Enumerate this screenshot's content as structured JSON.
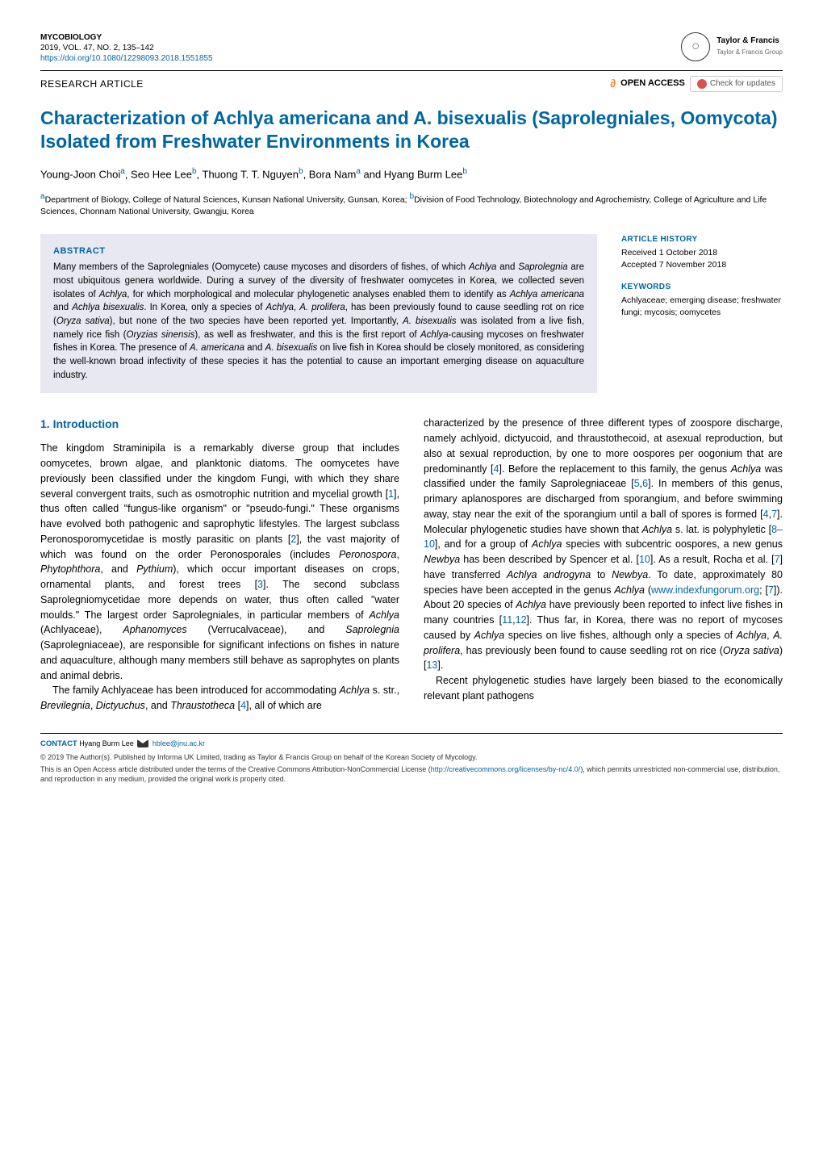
{
  "journal": {
    "name": "MYCOBIOLOGY",
    "citation": "2019, VOL. 47, NO. 2, 135–142",
    "doi": "https://doi.org/10.1080/12298093.2018.1551855"
  },
  "publisher": {
    "logo_text": "Taylor & Francis",
    "logo_sub": "Taylor & Francis Group",
    "society_logo": "KOREAN SOCIETY OF MYCOLOGY"
  },
  "article_type": "RESEARCH ARTICLE",
  "access": {
    "open_access": "OPEN ACCESS",
    "check_updates": "Check for updates"
  },
  "title": "Characterization of Achlya americana and A. bisexualis (Saprolegniales, Oomycota) Isolated from Freshwater Environments in Korea",
  "authors_html": "Young-Joon Choi<sup class='sup'>a</sup>, Seo Hee Lee<sup class='sup'>b</sup>, Thuong T. T. Nguyen<sup class='sup'>b</sup>, Bora Nam<sup class='sup'>a</sup> and Hyang Burm Lee<sup class='sup'>b</sup>",
  "affiliations_html": "<sup class='sup'>a</sup>Department of Biology, College of Natural Sciences, Kunsan National University, Gunsan, Korea;  <sup class='sup'>b</sup>Division of Food Technology, Biotechnology and Agrochemistry, College of Agriculture and Life Sciences, Chonnam National University, Gwangju, Korea",
  "abstract": {
    "heading": "ABSTRACT",
    "text_html": "Many members of the Saprolegniales (Oomycete) cause mycoses and disorders of fishes, of which <span class='italic'>Achlya</span> and <span class='italic'>Saprolegnia</span> are most ubiquitous genera worldwide. During a survey of the diversity of freshwater oomycetes in Korea, we collected seven isolates of <span class='italic'>Achlya</span>, for which morphological and molecular phylogenetic analyses enabled them to identify as <span class='italic'>Achlya americana</span> and <span class='italic'>Achlya bisexualis</span>. In Korea, only a species of <span class='italic'>Achlya</span>, <span class='italic'>A. prolifera</span>, has been previously found to cause seedling rot on rice (<span class='italic'>Oryza sativa</span>), but none of the two species have been reported yet. Importantly, <span class='italic'>A. bisexualis</span> was isolated from a live fish, namely rice fish (<span class='italic'>Oryzias sinensis</span>), as well as freshwater, and this is the first report of <span class='italic'>Achlya</span>-causing mycoses on freshwater fishes in Korea. The presence of <span class='italic'>A. americana</span> and <span class='italic'>A. bisexualis</span> on live fish in Korea should be closely monitored, as considering the well-known broad infectivity of these species it has the potential to cause an important emerging disease on aquaculture industry."
  },
  "history": {
    "heading": "ARTICLE HISTORY",
    "received": "Received 1 October 2018",
    "accepted": "Accepted 7 November 2018"
  },
  "keywords": {
    "heading": "KEYWORDS",
    "text": "Achlyaceae; emerging disease; freshwater fungi; mycosis; oomycetes"
  },
  "intro": {
    "heading": "1. Introduction",
    "col1_p1_html": "The kingdom Straminipila is a remarkably diverse group that includes oomycetes, brown algae, and planktonic diatoms. The oomycetes have previously been classified under the kingdom Fungi, with which they share several convergent traits, such as osmotrophic nutrition and mycelial growth [<span class='ref'>1</span>], thus often called \"fungus-like organism\" or \"pseudo-fungi.\" These organisms have evolved both pathogenic and saprophytic lifestyles. The largest subclass Peronosporomycetidae is mostly parasitic on plants [<span class='ref'>2</span>], the vast majority of which was found on the order Peronosporales (includes <span class='italic'>Peronospora</span>, <span class='italic'>Phytophthora</span>, and <span class='italic'>Pythium</span>), which occur important diseases on crops, ornamental plants, and forest trees [<span class='ref'>3</span>]. The second subclass Saprolegniomycetidae more depends on water, thus often called \"water moulds.\" The largest order Saprolegniales, in particular members of <span class='italic'>Achlya</span> (Achlyaceae), <span class='italic'>Aphanomyces</span> (Verrucalvaceae), and <span class='italic'>Saprolegnia</span> (Saprolegniaceae), are responsible for significant infections on fishes in nature and aquaculture, although many members still behave as saprophytes on plants and animal debris.",
    "col1_p2_html": "The family Achlyaceae has been introduced for accommodating <span class='italic'>Achlya</span> s. str., <span class='italic'>Brevilegnia</span>, <span class='italic'>Dictyuchus</span>, and <span class='italic'>Thraustotheca</span> [<span class='ref'>4</span>], all of which are",
    "col2_p1_html": "characterized by the presence of three different types of zoospore discharge, namely achlyoid, dictyucoid, and thraustothecoid, at asexual reproduction, but also at sexual reproduction, by one to more oospores per oogonium that are predominantly [<span class='ref'>4</span>]. Before the replacement to this family, the genus <span class='italic'>Achlya</span> was classified under the family Saprolegniaceae [<span class='ref'>5</span>,<span class='ref'>6</span>]. In members of this genus, primary aplanospores are discharged from sporangium, and before swimming away, stay near the exit of the sporangium until a ball of spores is formed [<span class='ref'>4</span>,<span class='ref'>7</span>]. Molecular phylogenetic studies have shown that <span class='italic'>Achlya</span> s. lat. is polyphyletic [<span class='ref'>8–10</span>], and for a group of <span class='italic'>Achlya</span> species with subcentric oospores, a new genus <span class='italic'>Newbya</span> has been described by Spencer et al. [<span class='ref'>10</span>]. As a result, Rocha et al. [<span class='ref'>7</span>] have transferred <span class='italic'>Achlya androgyna</span> to <span class='italic'>Newbya</span>. To date, approximately 80 species have been accepted in the genus <span class='italic'>Achlya</span> (<span class='link'>www.indexfungorum.org</span>; [<span class='ref'>7</span>]). About 20 species of <span class='italic'>Achlya</span> have previously been reported to infect live fishes in many countries [<span class='ref'>11</span>,<span class='ref'>12</span>]. Thus far, in Korea, there was no report of mycoses caused by <span class='italic'>Achlya</span> species on live fishes, although only a species of <span class='italic'>Achlya</span>, <span class='italic'>A. prolifera</span>, has previously been found to cause seedling rot on rice (<span class='italic'>Oryza sativa</span>) [<span class='ref'>13</span>].",
    "col2_p2_html": "Recent phylogenetic studies have largely been biased to the economically relevant plant pathogens"
  },
  "footer": {
    "contact_label": "CONTACT",
    "contact_name": "Hyang Burm Lee",
    "contact_email": "hblee@jnu.ac.kr",
    "copyright": "© 2019 The Author(s). Published by Informa UK Limited, trading as Taylor & Francis Group on behalf of the Korean Society of Mycology.",
    "license_html": "This is an Open Access article distributed under the terms of the Creative Commons Attribution-NonCommercial License (<span class='link'>http://creativecommons.org/licenses/by-nc/4.0/</span>), which permits unrestricted non-commercial use, distribution, and reproduction in any medium, provided the original work is properly cited."
  },
  "colors": {
    "accent": "#0066a1",
    "abstract_bg": "#e8e8f0",
    "orange": "#f58220"
  }
}
